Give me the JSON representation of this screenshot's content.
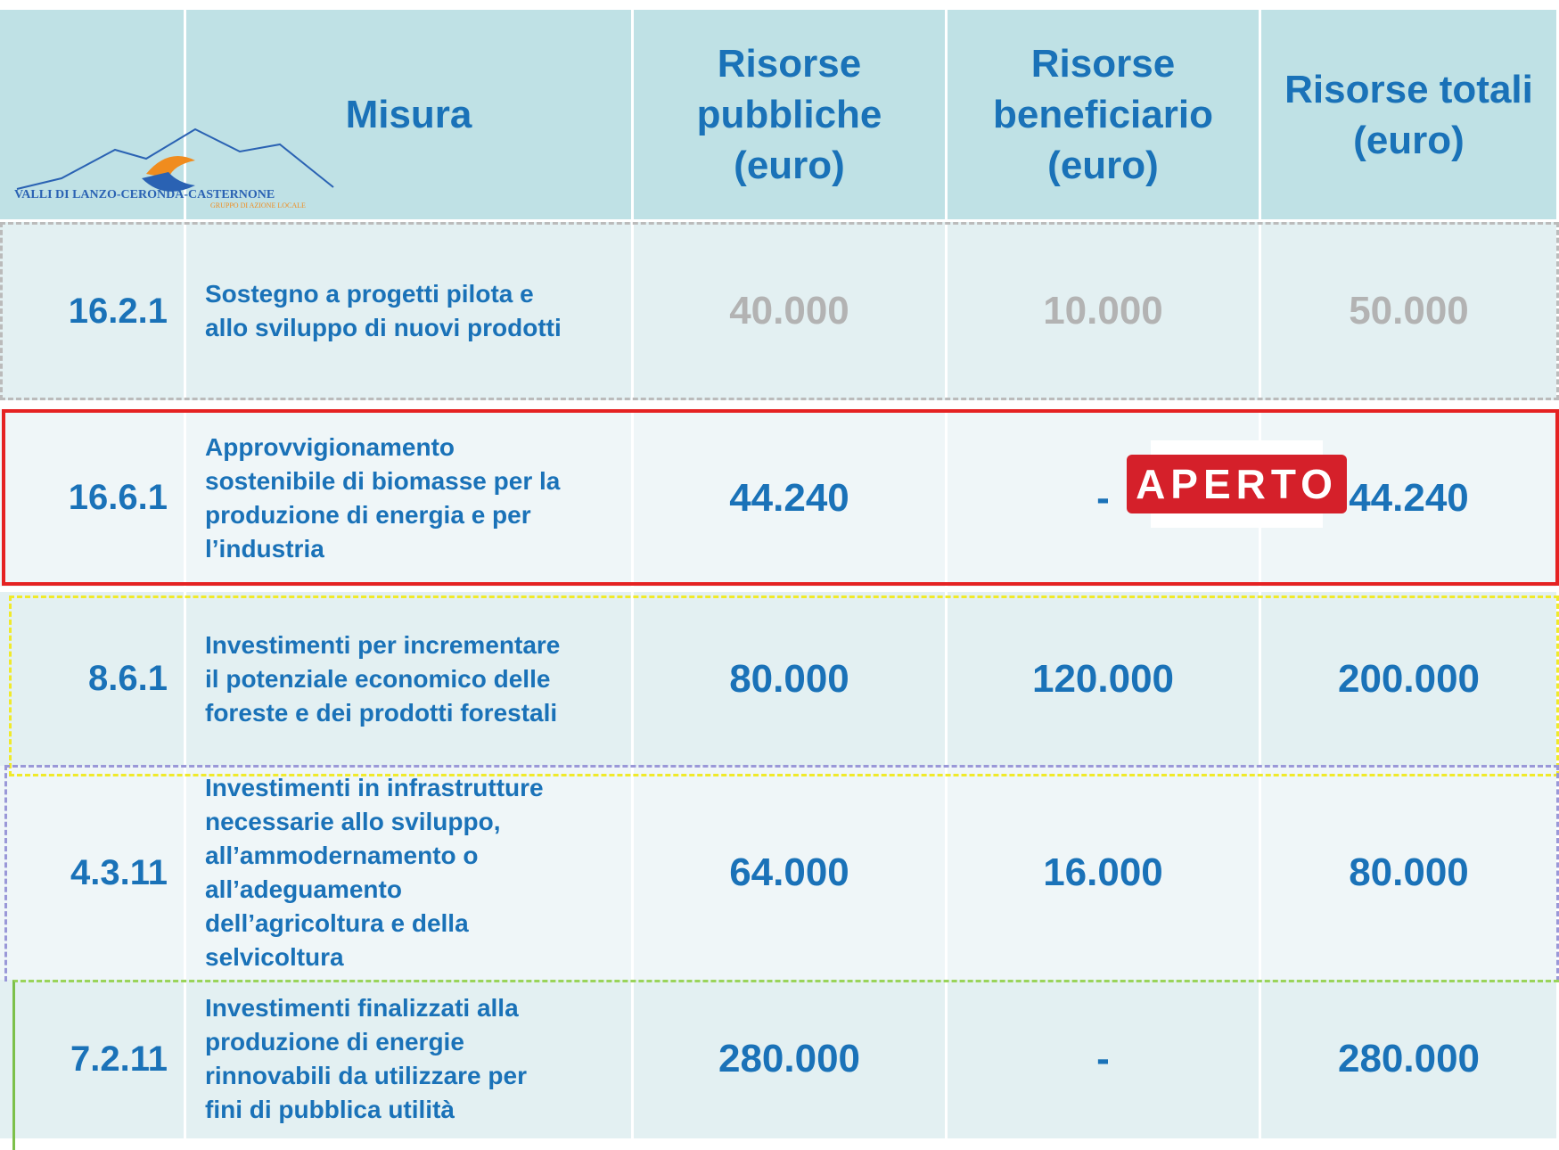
{
  "header": {
    "columns": [
      "Misura",
      "Risorse\npubbliche\n(euro)",
      "Risorse\nbeneficiario\n(euro)",
      "Risorse totali\n(euro)"
    ]
  },
  "logo": {
    "name": "VALLI DI LANZO-CERONDA-CASTERNONE",
    "subtitle": "GRUPPO DI AZIONE LOCALE"
  },
  "badge": "APERTO",
  "table": {
    "rows": [
      [
        "16.2.1",
        "Sostegno a progetti pilota e\nallo sviluppo di nuovi prodotti",
        "40.000",
        "10.000",
        "50.000"
      ],
      [
        "16.6.1",
        "Approvvigionamento\nsostenibile di biomasse per la\nproduzione di energia e per\nl’industria",
        "44.240",
        "-",
        "44.240"
      ],
      [
        "8.6.1",
        "Investimenti per incrementare\nil potenziale economico delle\nforeste e dei prodotti forestali",
        "80.000",
        "120.000",
        "200.000"
      ],
      [
        "4.3.11",
        "Investimenti in infrastrutture\nnecessarie allo sviluppo,\nall’ammodernamento o\nall’adeguamento\ndell’agricoltura e della\nselvicoltura",
        "64.000",
        "16.000",
        "80.000"
      ],
      [
        "7.2.11",
        "Investimenti finalizzati alla\nproduzione di energie\nrinnovabili da utilizzare per\nfini di pubblica utilità",
        "280.000",
        "-",
        "280.000"
      ]
    ]
  }
}
